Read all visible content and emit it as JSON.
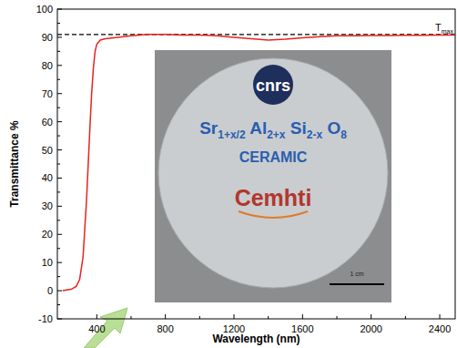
{
  "chart_data": {
    "type": "line",
    "x_label": "Wavelength (nm)",
    "y_label": "Transmittance %",
    "x": [
      200,
      250,
      280,
      300,
      320,
      340,
      350,
      360,
      370,
      380,
      390,
      400,
      420,
      450,
      500,
      600,
      700,
      800,
      900,
      1000,
      1100,
      1200,
      1300,
      1400,
      1500,
      1600,
      1700,
      1800,
      1900,
      2000,
      2100,
      2200,
      2300,
      2400,
      2490
    ],
    "values": [
      0,
      0.5,
      1.5,
      4,
      12,
      32,
      45,
      58,
      70,
      79,
      85,
      87.5,
      89,
      89.5,
      89.8,
      90.5,
      91,
      91,
      90.8,
      90.8,
      90.5,
      90,
      89.5,
      89,
      89.3,
      89.8,
      90.2,
      90.5,
      90.5,
      90.6,
      90.6,
      90.7,
      90.7,
      90.8,
      90.8
    ],
    "color": "#e8231f",
    "xlim": [
      170,
      2490
    ],
    "ylim": [
      -10,
      100
    ],
    "xticks": [
      400,
      800,
      1200,
      1600,
      2000,
      2400
    ],
    "yticks": [
      -10,
      0,
      10,
      20,
      30,
      40,
      50,
      60,
      70,
      80,
      90,
      100
    ],
    "annotations": [
      {
        "text": "T",
        "subscript": "max",
        "y": 91
      }
    ],
    "inset": {
      "logo_top": "cnrs",
      "formula": [
        [
          "Sr",
          "1+x/2"
        ],
        [
          "Al",
          "2+x"
        ],
        [
          "Si",
          "2-x"
        ],
        [
          "O",
          "8"
        ]
      ],
      "subtitle": "CERAMIC",
      "logo_bottom": "Cemhti",
      "scale_bar": "1 cm"
    }
  }
}
